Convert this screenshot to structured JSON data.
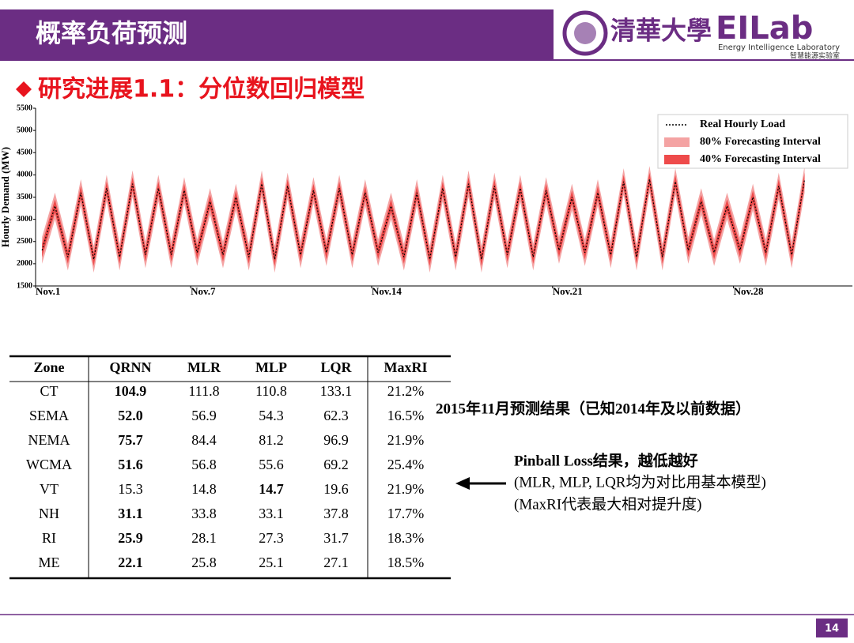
{
  "header": {
    "title": "概率负荷预测",
    "university": "清華大學",
    "lab": "EILab",
    "lab_en": "Energy Intelligence Laboratory",
    "lab_cn": "智慧能源实验室"
  },
  "subtitle": "研究进展1.1：分位数回归模型",
  "chart_data": {
    "type": "line",
    "ylabel": "Hourly Demand (MW)",
    "x": [
      0.25,
      0.75,
      1.25,
      1.75,
      2.25,
      2.75,
      3.25,
      3.75,
      4.25,
      4.75,
      5.25,
      5.75,
      6.25,
      6.75,
      7.25,
      7.75,
      8.25,
      8.75,
      9.25,
      9.75,
      10.25,
      10.75,
      11.25,
      11.75,
      12.25,
      12.75,
      13.25,
      13.75,
      14.25,
      14.75,
      15.25,
      15.75,
      16.25,
      16.75,
      17.25,
      17.75,
      18.25,
      18.75,
      19.25,
      19.75,
      20.25,
      20.75,
      21.25,
      21.75,
      22.25,
      22.75,
      23.25,
      23.75,
      24.25,
      24.75,
      25.25,
      25.75,
      26.25,
      26.75,
      27.25,
      27.75,
      28.25,
      28.75,
      29.25,
      29.75
    ],
    "xlim": [
      0,
      31.6
    ],
    "xticks": [
      {
        "value": 0,
        "label": "Nov.1"
      },
      {
        "value": 6,
        "label": "Nov.7"
      },
      {
        "value": 13,
        "label": "Nov.14"
      },
      {
        "value": 20,
        "label": "Nov.21"
      },
      {
        "value": 27,
        "label": "Nov.28"
      }
    ],
    "ylim": [
      1500,
      5500
    ],
    "yticks": [
      1500,
      2000,
      2500,
      3000,
      3500,
      4000,
      4500,
      5000,
      5500
    ],
    "legend": "top-right",
    "bands": [
      {
        "name": "80% Forecasting Interval",
        "color": "#f4a3a3",
        "lower": [
          2000,
          3000,
          1850,
          3300,
          1800,
          3400,
          1850,
          3500,
          1900,
          3400,
          1900,
          3350,
          1950,
          3100,
          1900,
          3200,
          1850,
          3500,
          1800,
          3450,
          1900,
          3350,
          1950,
          3400,
          1900,
          3300,
          1950,
          3000,
          1850,
          3300,
          1800,
          3400,
          1850,
          3500,
          1800,
          3450,
          1900,
          3400,
          1850,
          3350,
          2000,
          3200,
          1950,
          3300,
          1900,
          3550,
          1850,
          3600,
          1850,
          3550,
          2000,
          3100,
          1950,
          3000,
          2000,
          3200,
          1950,
          3450,
          1900,
          3600
        ],
        "upper": [
          2600,
          3600,
          2450,
          3900,
          2400,
          4000,
          2450,
          4100,
          2500,
          4000,
          2500,
          3950,
          2550,
          3700,
          2500,
          3800,
          2450,
          4100,
          2400,
          4050,
          2500,
          3950,
          2550,
          4000,
          2500,
          3900,
          2550,
          3600,
          2450,
          3900,
          2400,
          4000,
          2450,
          4100,
          2400,
          4050,
          2500,
          4000,
          2450,
          3950,
          2600,
          3800,
          2550,
          3900,
          2500,
          4150,
          2450,
          4200,
          2450,
          4150,
          2600,
          3700,
          2550,
          3600,
          2600,
          3800,
          2550,
          4050,
          2500,
          4200
        ]
      },
      {
        "name": "40% Forecasting Interval",
        "color": "#ee4b4b",
        "lower": [
          2150,
          3150,
          2000,
          3450,
          1950,
          3550,
          2000,
          3650,
          2050,
          3550,
          2050,
          3500,
          2100,
          3250,
          2050,
          3350,
          2000,
          3650,
          1950,
          3600,
          2050,
          3500,
          2100,
          3550,
          2050,
          3450,
          2100,
          3150,
          2000,
          3450,
          1950,
          3550,
          2000,
          3650,
          1950,
          3600,
          2050,
          3550,
          2000,
          3500,
          2150,
          3350,
          2100,
          3450,
          2050,
          3700,
          2000,
          3750,
          2000,
          3700,
          2150,
          3250,
          2100,
          3150,
          2150,
          3350,
          2100,
          3600,
          2050,
          3750
        ],
        "upper": [
          2450,
          3450,
          2300,
          3750,
          2250,
          3850,
          2300,
          3950,
          2350,
          3850,
          2350,
          3800,
          2400,
          3550,
          2350,
          3650,
          2300,
          3950,
          2250,
          3900,
          2350,
          3800,
          2400,
          3850,
          2350,
          3750,
          2400,
          3450,
          2300,
          3750,
          2250,
          3850,
          2300,
          3950,
          2250,
          3900,
          2350,
          3850,
          2300,
          3800,
          2450,
          3650,
          2400,
          3750,
          2350,
          4000,
          2300,
          4050,
          2300,
          4000,
          2450,
          3550,
          2400,
          3450,
          2450,
          3650,
          2400,
          3900,
          2350,
          4050
        ]
      }
    ],
    "series": [
      {
        "name": "Real Hourly Load",
        "color": "#000000",
        "values": [
          2300,
          3300,
          2150,
          3600,
          2100,
          3700,
          2150,
          3800,
          2200,
          3700,
          2200,
          3650,
          2250,
          3400,
          2200,
          3500,
          2150,
          3800,
          2100,
          3750,
          2200,
          3650,
          2250,
          3700,
          2200,
          3600,
          2250,
          3300,
          2150,
          3600,
          2100,
          3700,
          2150,
          3800,
          2100,
          3750,
          2200,
          3700,
          2150,
          3650,
          2300,
          3500,
          2250,
          3600,
          2200,
          3850,
          2150,
          3900,
          2150,
          3850,
          2300,
          3400,
          2250,
          3300,
          2300,
          3500,
          2250,
          3750,
          2200,
          3900
        ]
      }
    ]
  },
  "table": {
    "header": [
      "Zone",
      "QRNN",
      "MLR",
      "MLP",
      "LQR",
      "MaxRI"
    ],
    "rows": [
      [
        "CT",
        "104.9",
        "111.8",
        "110.8",
        "133.1",
        "21.2%"
      ],
      [
        "SEMA",
        "52.0",
        "56.9",
        "54.3",
        "62.3",
        "16.5%"
      ],
      [
        "NEMA",
        "75.7",
        "84.4",
        "81.2",
        "96.9",
        "21.9%"
      ],
      [
        "WCMA",
        "51.6",
        "56.8",
        "55.6",
        "69.2",
        "25.4%"
      ],
      [
        "VT",
        "15.3",
        "14.8",
        "14.7",
        "19.6",
        "21.9%"
      ],
      [
        "NH",
        "31.1",
        "33.8",
        "33.1",
        "37.8",
        "17.7%"
      ],
      [
        "RI",
        "25.9",
        "28.1",
        "27.3",
        "31.7",
        "18.3%"
      ],
      [
        "ME",
        "22.1",
        "25.8",
        "25.1",
        "27.1",
        "18.5%"
      ]
    ],
    "bold": [
      1,
      1,
      1,
      1,
      3,
      1,
      1,
      1
    ]
  },
  "notes": {
    "result": "2015年11月预测结果（已知2014年及以前数据）",
    "loss": "Pinball Loss结果，越低越好",
    "baseline": "(MLR, MLP, LQR均为对比用基本模型)",
    "maxri": "(MaxRI代表最大相对提升度)"
  },
  "page_number": "14"
}
